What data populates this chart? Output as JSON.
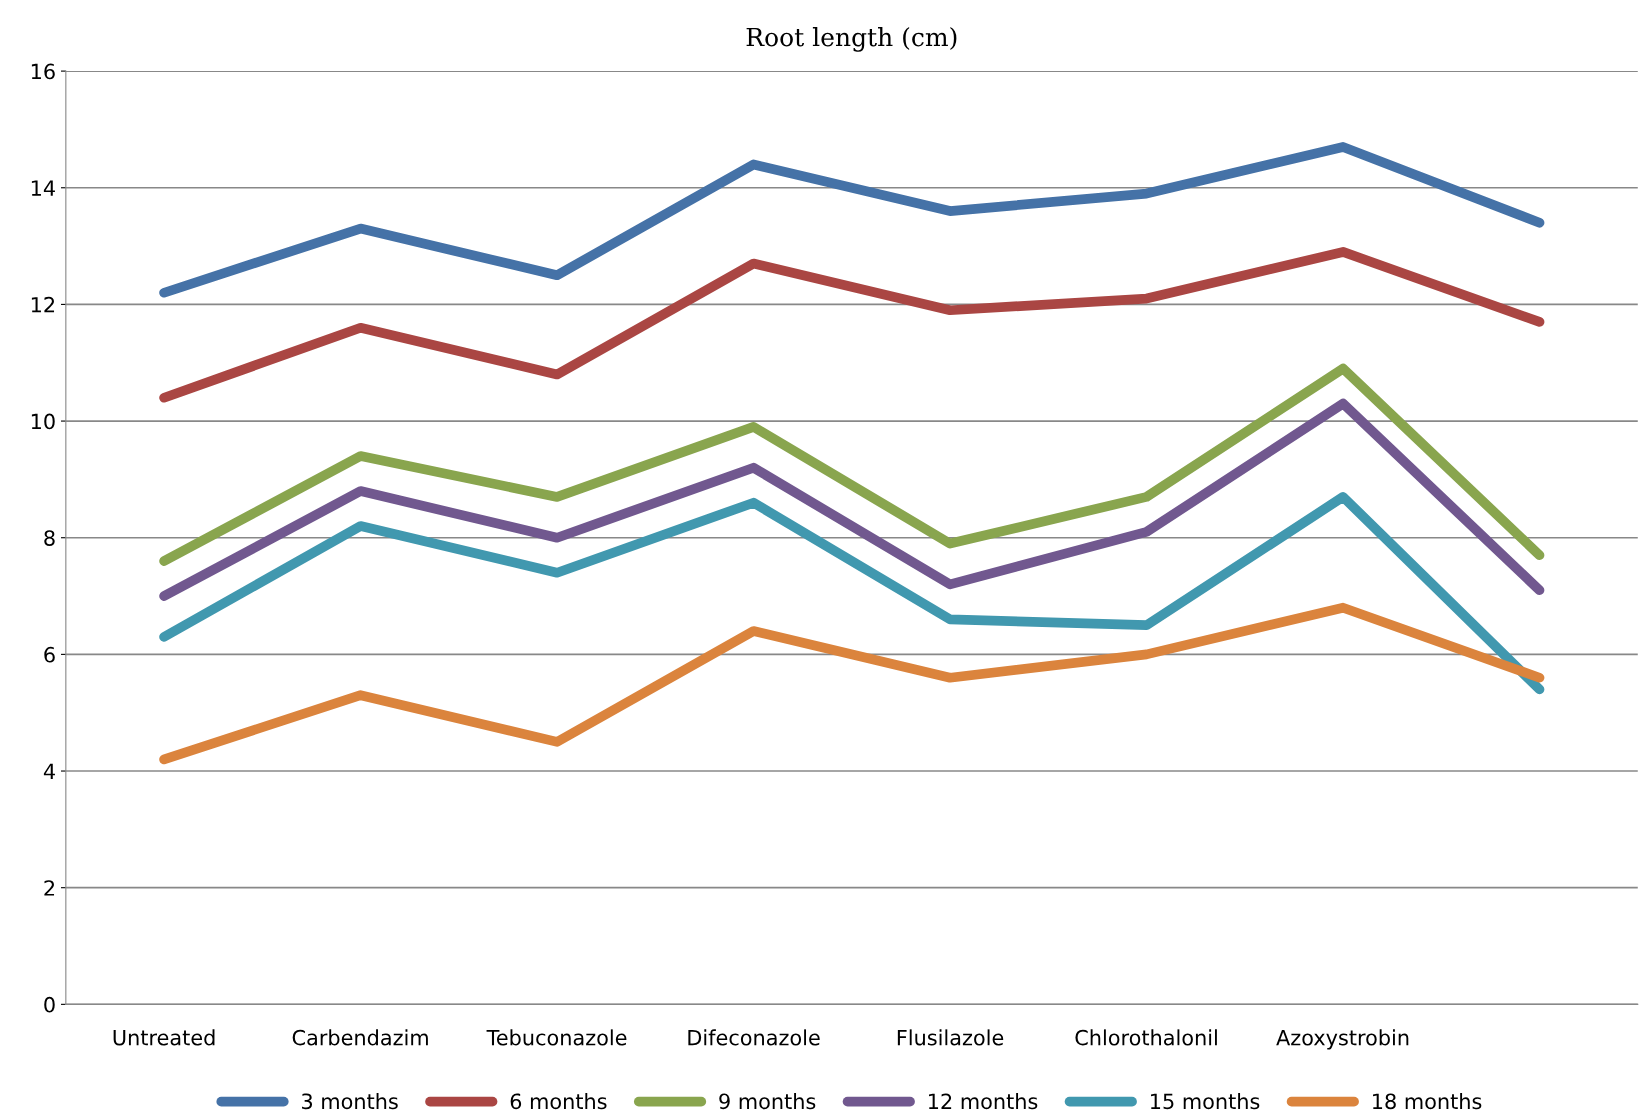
{
  "chart_data": {
    "type": "line",
    "title": "Root length (cm)",
    "categories": [
      "Untreated",
      "Carbendazim",
      "Tebuconazole",
      "Difeconazole",
      "Flusilazole",
      "Chlorothalonil",
      "Azoxystrobin",
      null
    ],
    "series": [
      {
        "name": "3 months",
        "color": "#4572a7",
        "values": [
          12.2,
          13.3,
          12.5,
          14.4,
          13.6,
          13.9,
          14.7,
          13.4
        ]
      },
      {
        "name": "6 months",
        "color": "#aa4643",
        "values": [
          10.4,
          11.6,
          10.8,
          12.7,
          11.9,
          12.1,
          12.9,
          11.7
        ]
      },
      {
        "name": "9 months",
        "color": "#89a54e",
        "values": [
          7.6,
          9.4,
          8.7,
          9.9,
          7.9,
          8.7,
          10.9,
          7.7
        ]
      },
      {
        "name": "12 months",
        "color": "#71588f",
        "values": [
          7.0,
          8.8,
          8.0,
          9.2,
          7.2,
          8.1,
          10.3,
          7.1
        ]
      },
      {
        "name": "15 months",
        "color": "#4198af",
        "values": [
          6.3,
          8.2,
          7.4,
          8.6,
          6.6,
          6.5,
          8.7,
          5.4
        ]
      },
      {
        "name": "18 months",
        "color": "#db843d",
        "values": [
          4.2,
          5.3,
          4.5,
          6.4,
          5.6,
          6.0,
          6.8,
          5.6
        ]
      }
    ],
    "ylim": [
      0,
      16
    ],
    "yticks": [
      0,
      2,
      4,
      6,
      8,
      10,
      12,
      14,
      16
    ],
    "grid": "y",
    "legend": "bottom",
    "line_style": "solid"
  }
}
